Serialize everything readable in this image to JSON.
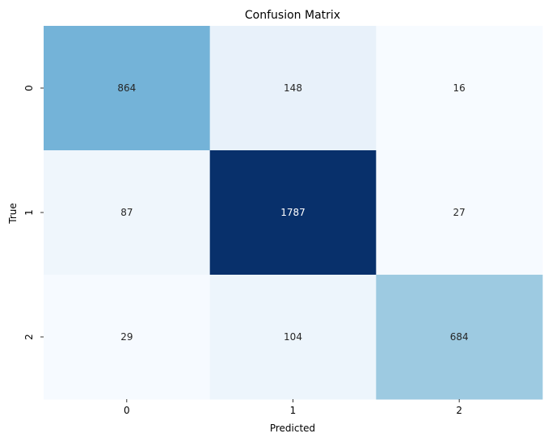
{
  "chart_data": {
    "type": "heatmap",
    "title": "Confusion Matrix",
    "xlabel": "Predicted",
    "ylabel": "True",
    "x_categories": [
      "0",
      "1",
      "2"
    ],
    "y_categories": [
      "0",
      "1",
      "2"
    ],
    "values": [
      [
        864,
        148,
        16
      ],
      [
        87,
        1787,
        27
      ],
      [
        29,
        104,
        684
      ]
    ],
    "colormap": "Blues",
    "value_range": [
      16,
      1787
    ],
    "colorbar": false,
    "grid": false
  }
}
